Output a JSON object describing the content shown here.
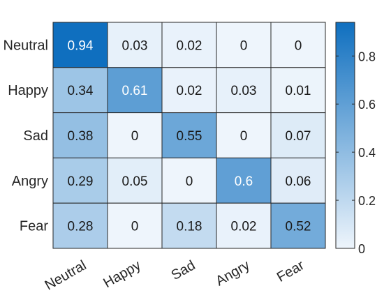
{
  "chart_data": {
    "type": "heatmap",
    "title": "",
    "xlabel": "",
    "ylabel": "",
    "x_categories": [
      "Neutral",
      "Happy",
      "Sad",
      "Angry",
      "Fear"
    ],
    "y_categories": [
      "Neutral",
      "Happy",
      "Sad",
      "Angry",
      "Fear"
    ],
    "values": [
      [
        0.94,
        0.03,
        0.02,
        0,
        0
      ],
      [
        0.34,
        0.61,
        0.02,
        0.03,
        0.01
      ],
      [
        0.38,
        0,
        0.55,
        0,
        0.07
      ],
      [
        0.29,
        0.05,
        0,
        0.6,
        0.06
      ],
      [
        0.28,
        0,
        0.18,
        0.02,
        0.52
      ]
    ],
    "cell_labels": [
      [
        "0.94",
        "0.03",
        "0.02",
        "0",
        "0"
      ],
      [
        "0.34",
        "0.61",
        "0.02",
        "0.03",
        "0.01"
      ],
      [
        "0.38",
        "0",
        "0.55",
        "0",
        "0.07"
      ],
      [
        "0.29",
        "0.05",
        "0",
        "0.6",
        "0.06"
      ],
      [
        "0.28",
        "0",
        "0.18",
        "0.02",
        "0.52"
      ]
    ],
    "colorbar": {
      "ticks": [
        "0",
        "0.2",
        "0.4",
        "0.6",
        "0.8"
      ],
      "tick_values": [
        0,
        0.2,
        0.4,
        0.6,
        0.8
      ],
      "range": [
        0,
        0.94
      ]
    },
    "color_low": "#eef5fc",
    "color_high": "#0f6fbf",
    "grid": true,
    "legend": "colorbar-right"
  }
}
